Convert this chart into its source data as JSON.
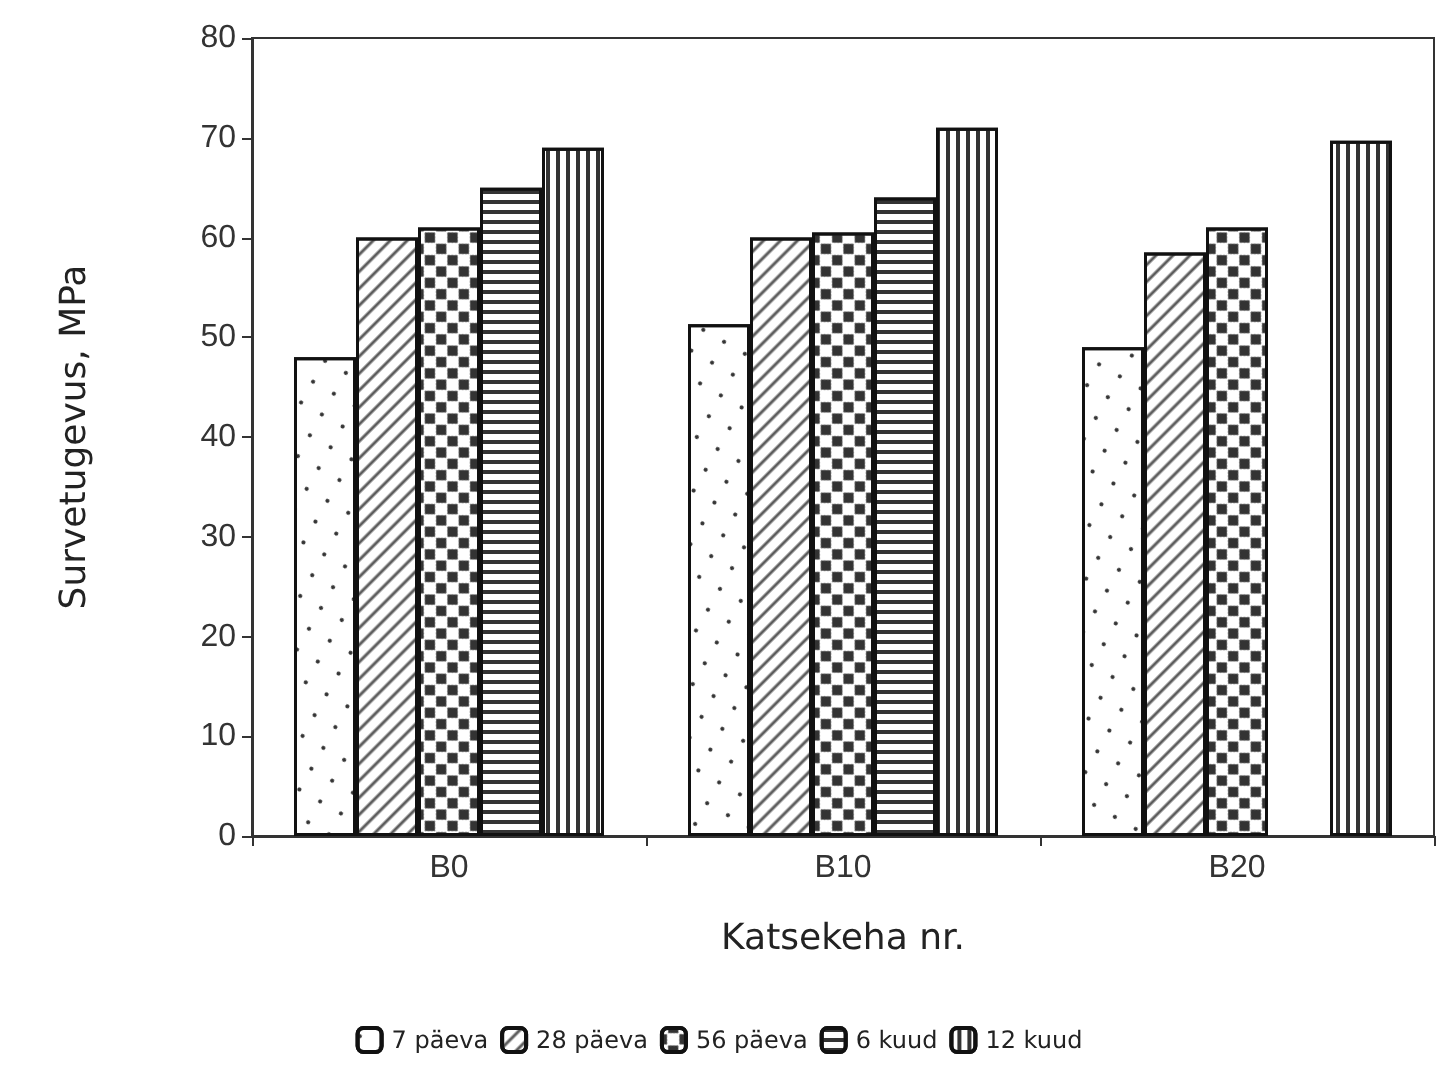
{
  "chart_data": {
    "type": "bar",
    "xlabel": "Katsekeha nr.",
    "ylabel": "Survetugevus, MPa",
    "categories": [
      "B0",
      "B10",
      "B20"
    ],
    "series": [
      {
        "name": "7 päeva",
        "color": "#ffffff",
        "values": [
          48,
          51.3,
          49
        ]
      },
      {
        "name": "28 päeva",
        "color": "#ffffff",
        "values": [
          60,
          60,
          58.5
        ]
      },
      {
        "name": "56 päeva",
        "color": "#ffffff",
        "values": [
          61,
          60.5,
          61
        ]
      },
      {
        "name": "6 kuud",
        "color": "#ffffff",
        "values": [
          65,
          64,
          null
        ]
      },
      {
        "name": "12 kuud",
        "color": "#ffffff",
        "values": [
          69,
          71,
          69.7
        ]
      }
    ],
    "ylim": [
      0,
      80
    ],
    "yticks": [
      0,
      10,
      20,
      30,
      40,
      50,
      60,
      70,
      80
    ],
    "grid": false,
    "legend": "bottom"
  }
}
